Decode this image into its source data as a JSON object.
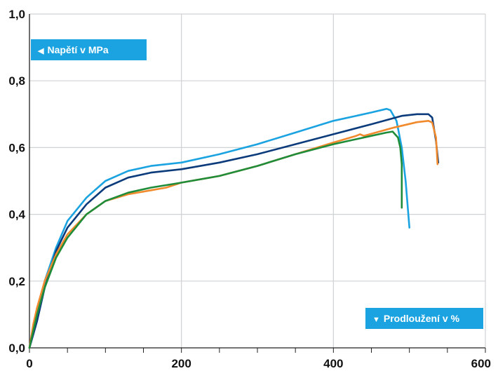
{
  "chart_data": {
    "type": "line",
    "title": "",
    "ylabel": "Napětí v MPa",
    "xlabel": "Prodloužení v %",
    "xlim": [
      0,
      600
    ],
    "ylim": [
      0,
      1.0
    ],
    "x_ticks": [
      "0",
      "200",
      "400",
      "600"
    ],
    "y_ticks": [
      "0,0",
      "0,2",
      "0,4",
      "0,6",
      "0,8",
      "1,0"
    ],
    "grid": true,
    "legend": "none",
    "series": [
      {
        "color": "#1aa3e0",
        "x": [
          0,
          5,
          10,
          20,
          35,
          50,
          75,
          100,
          130,
          160,
          200,
          250,
          300,
          350,
          400,
          450,
          470,
          475,
          483,
          490,
          495,
          500
        ],
        "y": [
          0.0,
          0.05,
          0.1,
          0.2,
          0.3,
          0.38,
          0.45,
          0.5,
          0.53,
          0.545,
          0.555,
          0.58,
          0.61,
          0.645,
          0.68,
          0.705,
          0.716,
          0.712,
          0.68,
          0.6,
          0.5,
          0.36
        ]
      },
      {
        "color": "#0b3b7a",
        "x": [
          0,
          5,
          10,
          20,
          35,
          50,
          75,
          100,
          130,
          160,
          200,
          250,
          300,
          350,
          400,
          450,
          490,
          510,
          525,
          530,
          535,
          538
        ],
        "y": [
          0.0,
          0.04,
          0.08,
          0.18,
          0.29,
          0.36,
          0.43,
          0.48,
          0.51,
          0.525,
          0.535,
          0.555,
          0.58,
          0.61,
          0.64,
          0.67,
          0.695,
          0.7,
          0.7,
          0.69,
          0.62,
          0.555
        ]
      },
      {
        "color": "#f08a2c",
        "x": [
          0,
          5,
          10,
          20,
          35,
          50,
          75,
          100,
          130,
          160,
          180,
          200,
          250,
          300,
          350,
          400,
          430,
          435,
          440,
          480,
          510,
          525,
          530,
          535,
          537
        ],
        "y": [
          0.0,
          0.07,
          0.12,
          0.2,
          0.28,
          0.34,
          0.4,
          0.44,
          0.46,
          0.472,
          0.48,
          0.495,
          0.515,
          0.545,
          0.58,
          0.615,
          0.635,
          0.64,
          0.635,
          0.66,
          0.676,
          0.68,
          0.675,
          0.63,
          0.55
        ]
      },
      {
        "color": "#1f8c3a",
        "x": [
          0,
          5,
          10,
          20,
          35,
          50,
          75,
          100,
          130,
          160,
          200,
          250,
          300,
          350,
          400,
          450,
          470,
          478,
          485,
          488,
          490,
          490
        ],
        "y": [
          0.0,
          0.05,
          0.1,
          0.18,
          0.27,
          0.33,
          0.4,
          0.44,
          0.465,
          0.48,
          0.495,
          0.515,
          0.545,
          0.58,
          0.61,
          0.635,
          0.645,
          0.648,
          0.63,
          0.6,
          0.55,
          0.42
        ]
      }
    ]
  }
}
